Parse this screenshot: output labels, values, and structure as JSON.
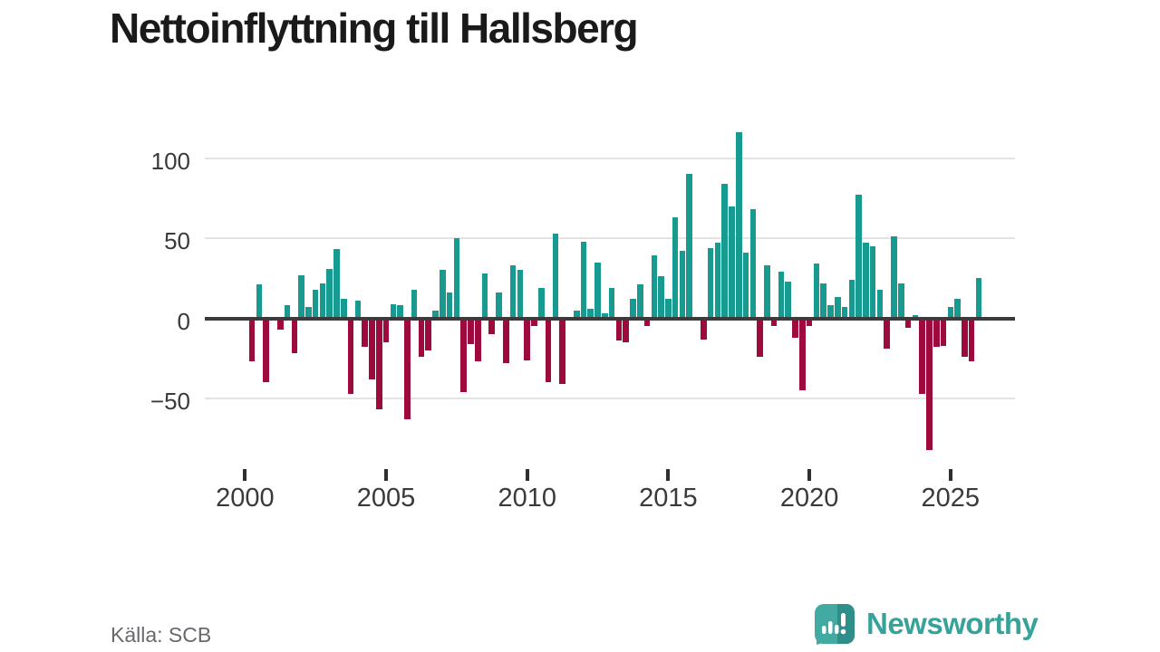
{
  "title": "Nettoinflyttning till Hallsberg",
  "source": "Källa: SCB",
  "brand": {
    "name": "Newsworthy"
  },
  "chart_data": {
    "type": "bar",
    "title": "Nettoinflyttning till Hallsberg",
    "frequency": "quarterly",
    "start_period": "2000-Q1",
    "end_period": "2025-Q4",
    "values": [
      -27,
      21,
      -40,
      0,
      -7,
      8,
      -22,
      27,
      7,
      18,
      22,
      31,
      43,
      12,
      -47,
      11,
      -18,
      -38,
      -57,
      -15,
      9,
      8,
      -63,
      18,
      -24,
      -20,
      5,
      30,
      16,
      50,
      -46,
      -16,
      -27,
      28,
      -10,
      16,
      -28,
      33,
      30,
      -26,
      -5,
      19,
      -40,
      53,
      -41,
      0,
      5,
      48,
      6,
      35,
      3,
      19,
      -14,
      -15,
      12,
      21,
      -5,
      39,
      26,
      12,
      63,
      42,
      90,
      0,
      -13,
      44,
      47,
      84,
      70,
      116,
      41,
      68,
      -24,
      33,
      -5,
      29,
      23,
      -12,
      -45,
      -5,
      34,
      22,
      8,
      13,
      7,
      24,
      77,
      47,
      45,
      18,
      -19,
      51,
      22,
      -6,
      2,
      -47,
      -82,
      -18,
      -17,
      7,
      12,
      -24,
      -27,
      25
    ],
    "y_ticks": [
      100,
      50,
      0,
      -50
    ],
    "y_tick_labels": [
      "100",
      "50",
      "0",
      "−50"
    ],
    "x_tick_years": [
      2000,
      2005,
      2010,
      2015,
      2020,
      2025
    ],
    "ylim": [
      -90,
      125
    ],
    "grid": "horizontal",
    "legend": "none",
    "positive_color": "#179a90",
    "negative_color": "#9e0a3e"
  }
}
